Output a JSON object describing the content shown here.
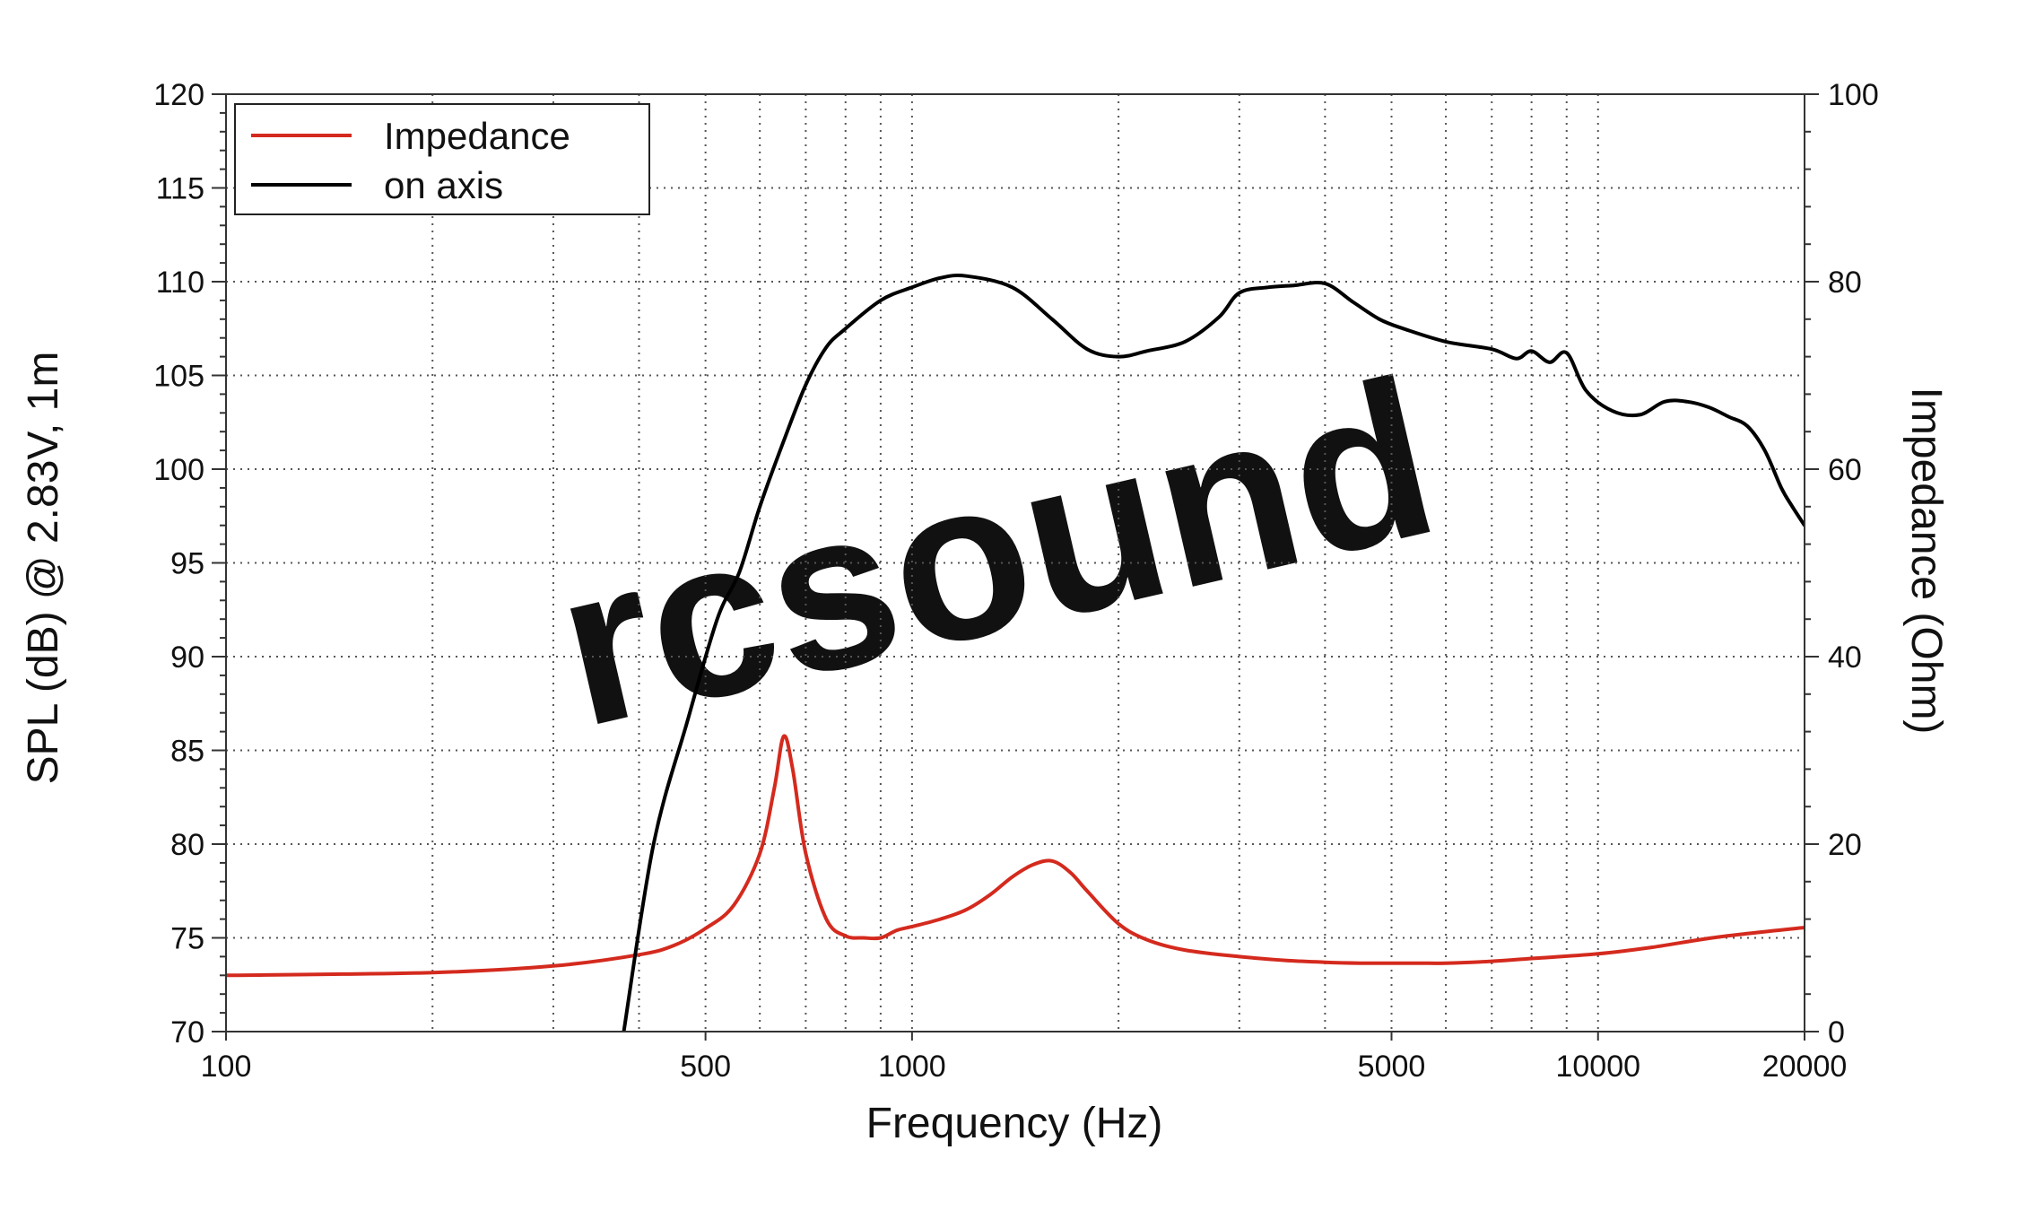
{
  "chart_data": {
    "type": "line",
    "xlabel": "Frequency (Hz)",
    "ylabel": "SPL (dB) @ 2.83V, 1m",
    "y2label": "Impedance (Ohm)",
    "xscale": "log",
    "xlim": [
      100,
      20000
    ],
    "ylim": [
      70,
      120
    ],
    "y2lim": [
      0,
      100
    ],
    "grid": true,
    "legend_position": "top-left",
    "watermark": "rcsound",
    "x_ticks": [
      "100",
      "500",
      "1000",
      "5000",
      "10000",
      "20000"
    ],
    "y_ticks": [
      "70",
      "75",
      "80",
      "85",
      "90",
      "95",
      "100",
      "105",
      "110",
      "115",
      "120"
    ],
    "y2_ticks": [
      "0",
      "20",
      "40",
      "60",
      "80",
      "100"
    ],
    "series": [
      {
        "name": "Impedance",
        "axis": "right",
        "color": "#d42a1e",
        "x": [
          100,
          200,
          300,
          400,
          450,
          500,
          550,
          600,
          630,
          650,
          670,
          700,
          750,
          800,
          850,
          900,
          950,
          1000,
          1100,
          1200,
          1300,
          1400,
          1500,
          1600,
          1700,
          1800,
          2000,
          2200,
          2500,
          3000,
          3500,
          4000,
          4500,
          5000,
          5500,
          6000,
          7000,
          8000,
          10000,
          12000,
          15000,
          20000
        ],
        "values": [
          6,
          6.3,
          7,
          8.2,
          9.2,
          11,
          13.5,
          19,
          26,
          31.5,
          28,
          19,
          12,
          10.2,
          10,
          10,
          10.8,
          11.2,
          12,
          13,
          14.6,
          16.5,
          17.8,
          18.2,
          17,
          15,
          11.5,
          9.8,
          8.7,
          8,
          7.6,
          7.4,
          7.3,
          7.3,
          7.3,
          7.3,
          7.5,
          7.8,
          8.3,
          9,
          10.1,
          11.1
        ]
      },
      {
        "name": "on axis",
        "axis": "left",
        "color": "#000000",
        "x": [
          380,
          420,
          470,
          520,
          560,
          600,
          650,
          700,
          750,
          800,
          900,
          1000,
          1100,
          1200,
          1400,
          1600,
          1800,
          2000,
          2200,
          2500,
          2800,
          3000,
          3300,
          3600,
          4000,
          4400,
          4800,
          5200,
          6000,
          7000,
          7600,
          8000,
          8500,
          9000,
          9600,
          10500,
          11500,
          12500,
          13500,
          14500,
          15500,
          16500,
          17500,
          18500,
          19200,
          20000
        ],
        "values": [
          70,
          80,
          86.5,
          92,
          94.5,
          98,
          101.5,
          104.5,
          106.5,
          107.5,
          109,
          109.7,
          110.2,
          110.3,
          109.7,
          108,
          106.4,
          106,
          106.3,
          106.8,
          108.1,
          109.4,
          109.7,
          109.8,
          109.9,
          108.9,
          108,
          107.5,
          106.8,
          106.4,
          105.9,
          106.3,
          105.7,
          106.2,
          104.2,
          103.1,
          102.9,
          103.6,
          103.6,
          103.3,
          102.8,
          102.3,
          101,
          99,
          98,
          97
        ]
      }
    ]
  }
}
